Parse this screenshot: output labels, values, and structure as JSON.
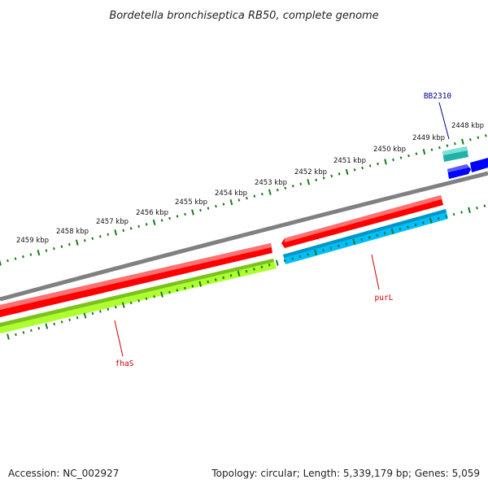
{
  "title": "Bordetella bronchiseptica RB50, complete genome",
  "footer": {
    "accession": "Accession: NC_002927",
    "summary": "Topology: circular; Length: 5,339,179 bp; Genes: 5,059"
  },
  "colors": {
    "backbone": "#808080",
    "forward_cds": "#ff0000",
    "reverse_cds_green": "#adff2f",
    "reverse_cds_cyan": "#00bfff",
    "rna_teal": "#20b2aa",
    "blue_cds": "#0000ff",
    "tick": "#1a7a1a",
    "gene_label_red": "#cc0000",
    "gene_label_blue": "#00008b"
  },
  "scale": {
    "unit": "kbp",
    "labels": [
      "2459 kbp",
      "2458 kbp",
      "2457 kbp",
      "2456 kbp",
      "2455 kbp",
      "2454 kbp",
      "2453 kbp",
      "2452 kbp",
      "2451 kbp",
      "2450 kbp",
      "2449 kbp",
      "2448 kbp"
    ]
  },
  "genes": [
    {
      "name": "fhaS",
      "strand": "forward_and_reverse",
      "color": "#ff0000"
    },
    {
      "name": "purL",
      "strand": "reverse",
      "color": "#00bfff"
    },
    {
      "name": "BB2310",
      "strand": "forward",
      "color": "#20b2aa"
    }
  ]
}
